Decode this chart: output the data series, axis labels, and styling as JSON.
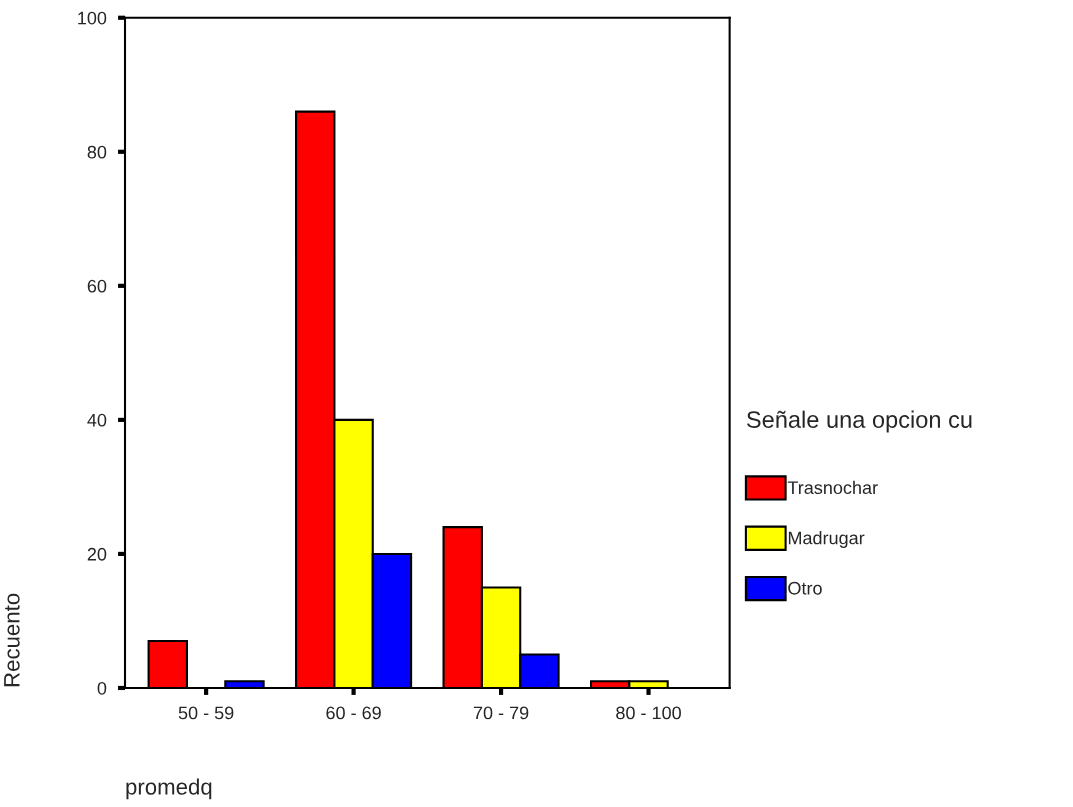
{
  "chart_data": {
    "type": "bar",
    "categories": [
      "50 - 59",
      "60 - 69",
      "70 - 79",
      "80 - 100"
    ],
    "series": [
      {
        "name": "Trasnochar",
        "color": "#ff0000",
        "values": [
          7,
          86,
          24,
          1
        ]
      },
      {
        "name": "Madrugar",
        "color": "#ffff00",
        "values": [
          0,
          40,
          15,
          1
        ]
      },
      {
        "name": "Otro",
        "color": "#0000ff",
        "values": [
          1,
          20,
          5,
          0
        ]
      }
    ],
    "xlabel": "promedq",
    "ylabel": "Recuento",
    "legend_title": "Señale una opcion cu",
    "ylim": [
      0,
      100
    ],
    "yticks": [
      0,
      20,
      40,
      60,
      80,
      100
    ],
    "grid": false,
    "legend": "right"
  }
}
